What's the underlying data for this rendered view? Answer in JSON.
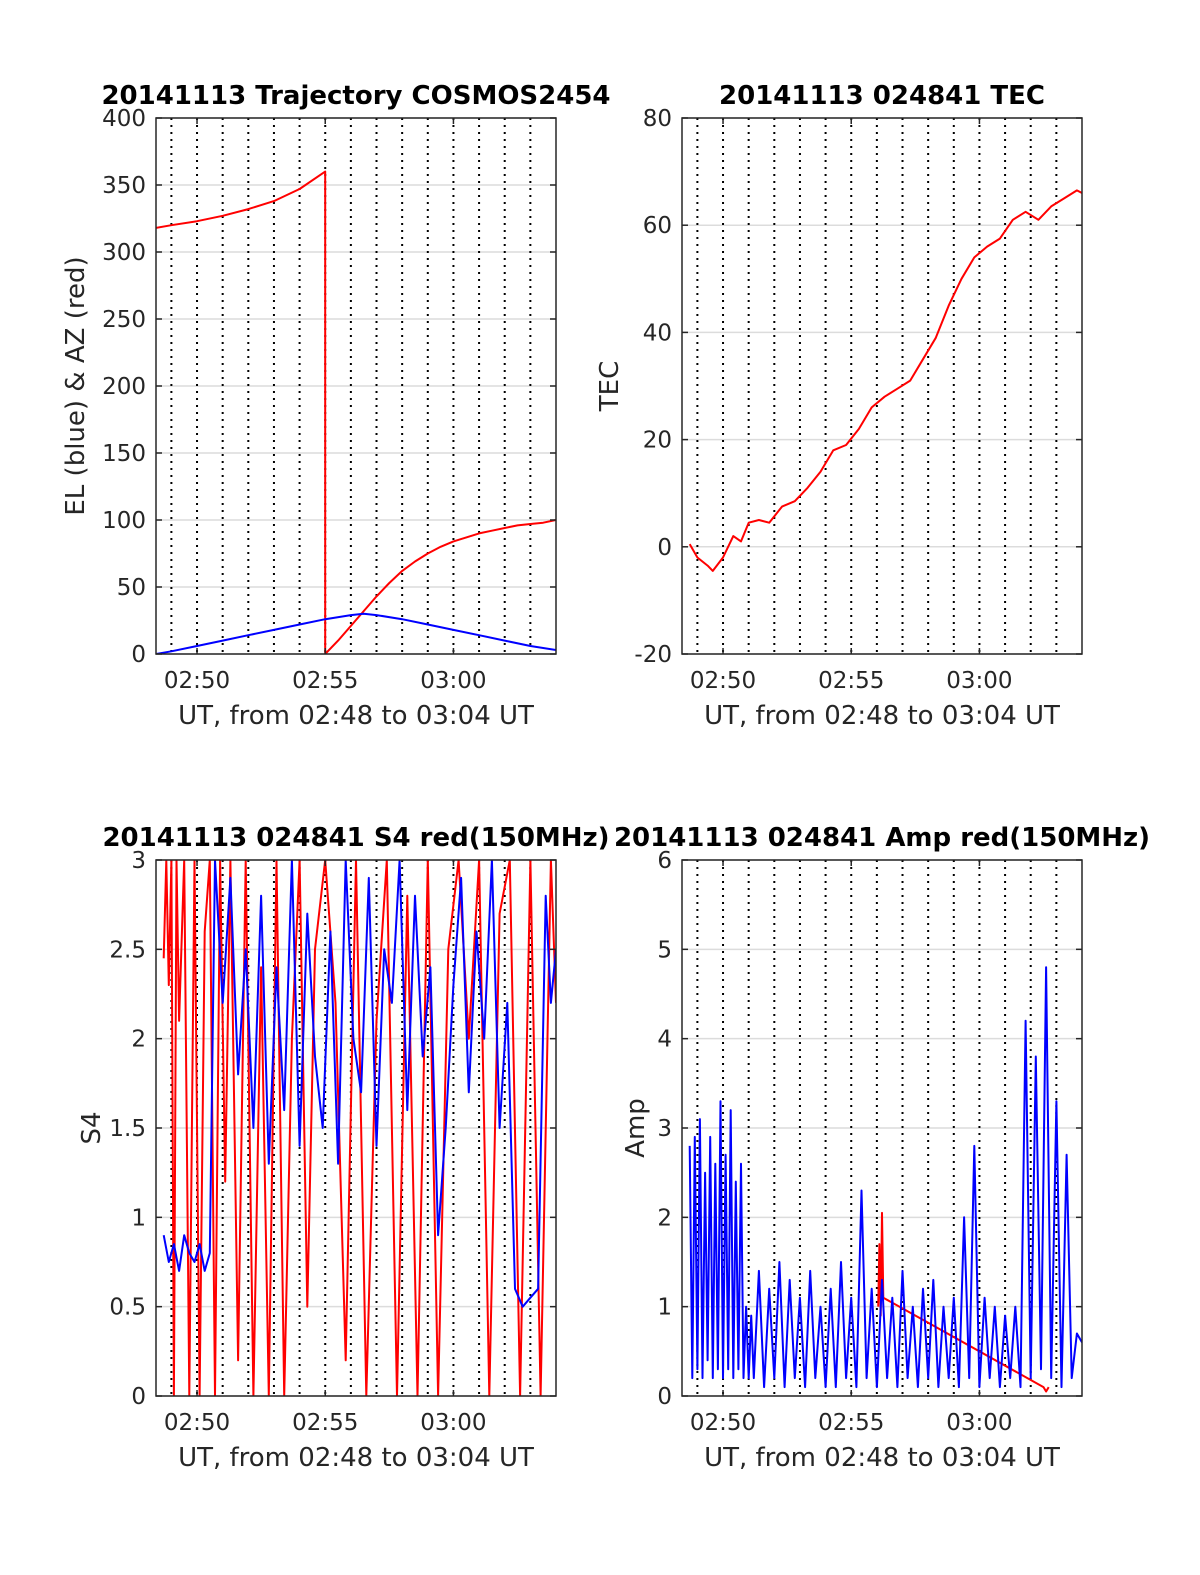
{
  "figure": {
    "background": "#ffffff",
    "grid_solid_color": "#dcdcdc",
    "grid_dotted_color": "#000000",
    "red": "#ff0000",
    "blue": "#0000ff"
  },
  "chart_data": [
    {
      "id": "trajectory",
      "type": "line",
      "title": "20141113 Trajectory COSMOS2454",
      "xlabel": "UT, from 02:48 to 03:04 UT",
      "ylabel": "EL (blue) & AZ (red)",
      "x_unit": "minutes after 02:48 UT",
      "xlim": [
        0.4,
        16.0
      ],
      "ylim": [
        0,
        400
      ],
      "yticks": [
        0,
        50,
        100,
        150,
        200,
        250,
        300,
        350,
        400
      ],
      "ytick_labels": [
        "0",
        "50",
        "100",
        "150",
        "200",
        "250",
        "300",
        "350",
        "400"
      ],
      "xticks": [
        2,
        7,
        12
      ],
      "xtick_labels": [
        "02:50",
        "02:55",
        "03:00"
      ],
      "dotted_verticals": [
        1.0,
        2.0,
        3.0,
        4.0,
        5.0,
        6.0,
        7.0,
        8.0,
        9.0,
        10.0,
        11.0,
        12.0,
        13.0,
        14.0,
        15.0
      ],
      "grid": true,
      "series": [
        {
          "color": "#ff0000",
          "x": [
            0.4,
            1.0,
            2.0,
            3.0,
            4.0,
            5.0,
            6.0,
            7.0,
            7.0,
            7.5,
            8.0,
            8.5,
            9.0,
            9.5,
            10.0,
            10.5,
            11.0,
            11.5,
            12.0,
            12.5,
            13.0,
            13.5,
            14.0,
            14.5,
            15.0,
            15.5,
            16.0
          ],
          "y": [
            318,
            320,
            323,
            327,
            332,
            338,
            347,
            360,
            0,
            10,
            21,
            32,
            43,
            53,
            62,
            69,
            75,
            80,
            84,
            87,
            90,
            92,
            94,
            96,
            97,
            98,
            100
          ]
        },
        {
          "color": "#0000ff",
          "x": [
            0.4,
            1.0,
            2.0,
            3.0,
            4.0,
            5.0,
            6.0,
            7.0,
            8.0,
            8.5,
            9.0,
            10.0,
            11.0,
            12.0,
            13.0,
            14.0,
            15.0,
            16.0
          ],
          "y": [
            0,
            2,
            6,
            10,
            14,
            18,
            22,
            26,
            29,
            30,
            29,
            26,
            22,
            18,
            14,
            10,
            6,
            3
          ]
        }
      ]
    },
    {
      "id": "tec",
      "type": "line",
      "title": "20141113 024841 TEC",
      "xlabel": "UT, from 02:48 to 03:04 UT",
      "ylabel": "TEC",
      "x_unit": "minutes after 02:48 UT",
      "xlim": [
        0.4,
        16.0
      ],
      "ylim": [
        -20,
        80
      ],
      "yticks": [
        -20,
        0,
        20,
        40,
        60,
        80
      ],
      "ytick_labels": [
        "-20",
        "0",
        "20",
        "40",
        "60",
        "80"
      ],
      "xticks": [
        2,
        7,
        12
      ],
      "xtick_labels": [
        "02:50",
        "02:55",
        "03:00"
      ],
      "dotted_verticals": [
        1.0,
        2.0,
        3.0,
        4.0,
        5.0,
        6.0,
        7.0,
        8.0,
        9.0,
        10.0,
        11.0,
        12.0,
        13.0,
        14.0,
        15.0
      ],
      "grid": true,
      "series": [
        {
          "color": "#ff0000",
          "x": [
            0.7,
            1.0,
            1.4,
            1.6,
            2.0,
            2.4,
            2.7,
            3.0,
            3.4,
            3.8,
            4.3,
            4.8,
            5.3,
            5.8,
            6.3,
            6.8,
            7.3,
            7.8,
            8.3,
            8.8,
            9.3,
            9.8,
            10.3,
            10.8,
            11.3,
            11.8,
            12.3,
            12.8,
            13.3,
            13.8,
            14.3,
            14.8,
            15.3,
            15.8,
            16.0
          ],
          "y": [
            0.5,
            -2,
            -3.5,
            -4.5,
            -2,
            2,
            1,
            4.5,
            5,
            4.5,
            7.5,
            8.5,
            11,
            14,
            18,
            19,
            22,
            26,
            28,
            29.5,
            31,
            35,
            39,
            45,
            50,
            54,
            56,
            57.5,
            61,
            62.5,
            61,
            63.5,
            65,
            66.5,
            66
          ]
        }
      ]
    },
    {
      "id": "s4",
      "type": "line",
      "title": "20141113 024841 S4 red(150MHz)",
      "xlabel": "UT, from 02:48 to 03:04 UT",
      "ylabel": "S4",
      "x_unit": "minutes after 02:48 UT",
      "xlim": [
        0.4,
        16.0
      ],
      "ylim": [
        0,
        3
      ],
      "yticks": [
        0,
        0.5,
        1,
        1.5,
        2,
        2.5,
        3
      ],
      "ytick_labels": [
        "0",
        "0.5",
        "1",
        "1.5",
        "2",
        "2.5",
        "3"
      ],
      "xticks": [
        2,
        7,
        12
      ],
      "xtick_labels": [
        "02:50",
        "02:55",
        "03:00"
      ],
      "dotted_verticals": [
        1.0,
        2.0,
        3.0,
        4.0,
        5.0,
        6.0,
        7.0,
        8.0,
        9.0,
        10.0,
        11.0,
        12.0,
        13.0,
        14.0,
        15.0
      ],
      "grid": true,
      "series": [
        {
          "color": "#ff0000",
          "x": [
            0.7,
            0.8,
            0.9,
            1.0,
            1.1,
            1.2,
            1.3,
            1.5,
            1.7,
            1.9,
            2.1,
            2.3,
            2.5,
            2.7,
            2.9,
            3.1,
            3.3,
            3.6,
            3.9,
            4.2,
            4.5,
            4.8,
            5.1,
            5.4,
            5.7,
            6.0,
            6.3,
            6.6,
            7.0,
            7.4,
            7.8,
            8.2,
            8.6,
            9.0,
            9.4,
            9.8,
            10.2,
            10.6,
            11.0,
            11.4,
            11.8,
            12.2,
            12.6,
            13.0,
            13.4,
            13.8,
            14.2,
            14.6,
            15.0,
            15.4,
            15.8,
            16.0
          ],
          "y": [
            2.45,
            3.0,
            2.3,
            3.0,
            0.0,
            3.0,
            2.1,
            3.0,
            0.0,
            3.0,
            0.0,
            2.6,
            3.0,
            0.0,
            3.0,
            1.2,
            3.0,
            0.2,
            3.0,
            0.0,
            2.4,
            0.0,
            3.0,
            0.0,
            2.0,
            3.0,
            0.5,
            2.5,
            3.0,
            2.2,
            0.2,
            3.0,
            0.0,
            2.1,
            3.0,
            0.0,
            2.8,
            0.0,
            3.0,
            0.0,
            2.5,
            3.0,
            2.0,
            3.0,
            0.0,
            2.7,
            3.0,
            0.0,
            3.0,
            0.0,
            3.0,
            2.2
          ]
        },
        {
          "color": "#0000ff",
          "x": [
            0.7,
            0.9,
            1.1,
            1.3,
            1.5,
            1.7,
            1.9,
            2.1,
            2.3,
            2.5,
            2.7,
            3.0,
            3.3,
            3.6,
            3.9,
            4.2,
            4.5,
            4.8,
            5.1,
            5.4,
            5.7,
            6.0,
            6.3,
            6.6,
            6.9,
            7.2,
            7.5,
            7.8,
            8.1,
            8.4,
            8.7,
            9.0,
            9.3,
            9.6,
            9.9,
            10.2,
            10.5,
            10.8,
            11.1,
            11.4,
            11.7,
            12.0,
            12.3,
            12.6,
            12.9,
            13.2,
            13.5,
            13.8,
            14.1,
            14.4,
            14.7,
            15.0,
            15.3,
            15.6,
            15.8,
            16.0
          ],
          "y": [
            0.9,
            0.75,
            0.85,
            0.7,
            0.9,
            0.8,
            0.75,
            0.85,
            0.7,
            0.8,
            3.0,
            2.2,
            2.9,
            1.8,
            2.5,
            1.5,
            2.8,
            1.3,
            2.4,
            1.6,
            3.0,
            1.4,
            2.7,
            1.9,
            1.5,
            2.6,
            1.3,
            3.0,
            2.0,
            1.7,
            2.9,
            1.4,
            2.5,
            2.2,
            3.0,
            1.6,
            2.8,
            1.9,
            2.4,
            0.9,
            1.5,
            2.3,
            2.9,
            1.7,
            2.6,
            2.0,
            3.0,
            1.5,
            2.2,
            0.6,
            0.5,
            0.55,
            0.6,
            2.8,
            2.2,
            2.5
          ]
        }
      ]
    },
    {
      "id": "amp",
      "type": "line",
      "title": "20141113 024841 Amp red(150MHz)",
      "xlabel": "UT, from 02:48 to 03:04 UT",
      "ylabel": "Amp",
      "x_unit": "minutes after 02:48 UT",
      "xlim": [
        0.4,
        16.0
      ],
      "ylim": [
        0,
        6
      ],
      "yticks": [
        0,
        1,
        2,
        3,
        4,
        5,
        6
      ],
      "ytick_labels": [
        "0",
        "1",
        "2",
        "3",
        "4",
        "5",
        "6"
      ],
      "xticks": [
        2,
        7,
        12
      ],
      "xtick_labels": [
        "02:50",
        "02:55",
        "03:00"
      ],
      "dotted_verticals": [
        1.0,
        2.0,
        3.0,
        4.0,
        5.0,
        6.0,
        7.0,
        8.0,
        9.0,
        10.0,
        11.0,
        12.0,
        13.0,
        14.0,
        15.0
      ],
      "grid": true,
      "series": [
        {
          "color": "#ff0000",
          "x": [
            8.05,
            8.1,
            8.15,
            8.2,
            8.25,
            14.5,
            14.6,
            14.7
          ],
          "y": [
            1.0,
            1.7,
            0.9,
            2.05,
            1.1,
            0.1,
            0.05,
            0.1
          ]
        },
        {
          "color": "#0000ff",
          "x": [
            0.7,
            0.8,
            0.9,
            1.0,
            1.1,
            1.2,
            1.3,
            1.4,
            1.5,
            1.6,
            1.7,
            1.8,
            1.9,
            2.0,
            2.1,
            2.2,
            2.3,
            2.4,
            2.5,
            2.6,
            2.7,
            2.8,
            2.9,
            3.0,
            3.1,
            3.2,
            3.4,
            3.6,
            3.8,
            4.0,
            4.2,
            4.4,
            4.6,
            4.8,
            5.0,
            5.2,
            5.4,
            5.6,
            5.8,
            6.0,
            6.2,
            6.4,
            6.6,
            6.8,
            7.0,
            7.2,
            7.4,
            7.6,
            7.8,
            8.0,
            8.2,
            8.4,
            8.6,
            8.8,
            9.0,
            9.2,
            9.4,
            9.6,
            9.8,
            10.0,
            10.2,
            10.4,
            10.6,
            10.8,
            11.0,
            11.2,
            11.4,
            11.6,
            11.8,
            12.0,
            12.2,
            12.4,
            12.6,
            12.8,
            13.0,
            13.2,
            13.4,
            13.6,
            13.8,
            14.0,
            14.2,
            14.4,
            14.6,
            14.8,
            15.0,
            15.2,
            15.4,
            15.6,
            15.8,
            16.0
          ],
          "y": [
            2.8,
            0.2,
            2.9,
            0.3,
            3.1,
            0.2,
            2.5,
            0.4,
            2.9,
            0.2,
            2.6,
            0.3,
            3.3,
            0.2,
            2.7,
            0.3,
            3.2,
            0.2,
            2.4,
            0.3,
            2.6,
            0.2,
            1.0,
            0.2,
            0.9,
            0.2,
            1.4,
            0.1,
            1.2,
            0.2,
            1.5,
            0.1,
            1.3,
            0.2,
            1.1,
            0.1,
            1.4,
            0.2,
            1.0,
            0.1,
            1.2,
            0.1,
            1.5,
            0.2,
            1.1,
            0.1,
            2.3,
            0.2,
            1.2,
            0.1,
            1.3,
            0.2,
            1.1,
            0.1,
            1.4,
            0.2,
            1.0,
            0.1,
            1.2,
            0.2,
            1.3,
            0.1,
            1.0,
            0.2,
            1.1,
            0.1,
            2.0,
            0.2,
            2.8,
            0.1,
            1.1,
            0.2,
            1.0,
            0.1,
            0.9,
            0.2,
            1.0,
            0.1,
            4.2,
            0.2,
            3.8,
            0.3,
            4.8,
            0.2,
            3.3,
            0.1,
            2.7,
            0.2,
            0.7,
            0.6
          ]
        }
      ]
    }
  ]
}
